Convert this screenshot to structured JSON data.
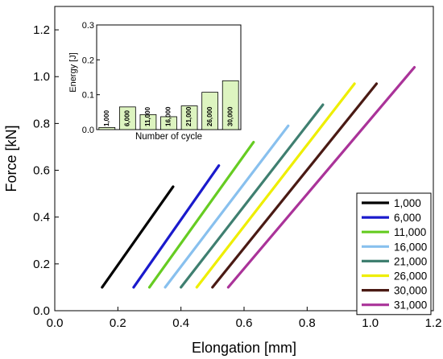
{
  "chart_data": [
    {
      "type": "line",
      "xlabel": "Elongation [mm]",
      "ylabel": "Force [kN]",
      "xlim": [
        0,
        1.2
      ],
      "ylim": [
        0,
        1.3
      ],
      "xticks": [
        "0.0",
        "0.2",
        "0.4",
        "0.6",
        "0.8",
        "1.0",
        "1.2"
      ],
      "yticks": [
        "0.0",
        "0.2",
        "0.4",
        "0.6",
        "0.8",
        "1.0",
        "1.2"
      ],
      "grid": false,
      "legend": "bottom-right",
      "series": [
        {
          "name": "1,000",
          "color": "#000000",
          "x": [
            0.15,
            0.375
          ],
          "y": [
            0.1,
            0.53
          ]
        },
        {
          "name": "6,000",
          "color": "#1a1acc",
          "x": [
            0.25,
            0.52
          ],
          "y": [
            0.1,
            0.62
          ]
        },
        {
          "name": "11,000",
          "color": "#66cc22",
          "x": [
            0.3,
            0.63
          ],
          "y": [
            0.1,
            0.72
          ]
        },
        {
          "name": "16,000",
          "color": "#88c0ee",
          "x": [
            0.35,
            0.74
          ],
          "y": [
            0.1,
            0.79
          ]
        },
        {
          "name": "21,000",
          "color": "#3f7f70",
          "x": [
            0.4,
            0.85
          ],
          "y": [
            0.1,
            0.88
          ]
        },
        {
          "name": "26,000",
          "color": "#eeee00",
          "x": [
            0.45,
            0.95
          ],
          "y": [
            0.1,
            0.97
          ]
        },
        {
          "name": "30,000",
          "color": "#4a1a14",
          "x": [
            0.5,
            1.02
          ],
          "y": [
            0.1,
            0.97
          ]
        },
        {
          "name": "31,000",
          "color": "#aa3399",
          "x": [
            0.55,
            1.14
          ],
          "y": [
            0.1,
            1.04
          ]
        }
      ]
    },
    {
      "type": "bar",
      "xlabel": "Number of cycle",
      "ylabel": "Energy [J]",
      "ylim": [
        0,
        0.3
      ],
      "yticks": [
        "0.0",
        "0.1",
        "0.2",
        "0.3"
      ],
      "bar_color": "#ddf4c0",
      "categories": [
        "1,000",
        "6,000",
        "11,000",
        "16,000",
        "21,000",
        "26,000",
        "30,000"
      ],
      "values": [
        0.006,
        0.065,
        0.043,
        0.037,
        0.068,
        0.107,
        0.14
      ]
    }
  ]
}
